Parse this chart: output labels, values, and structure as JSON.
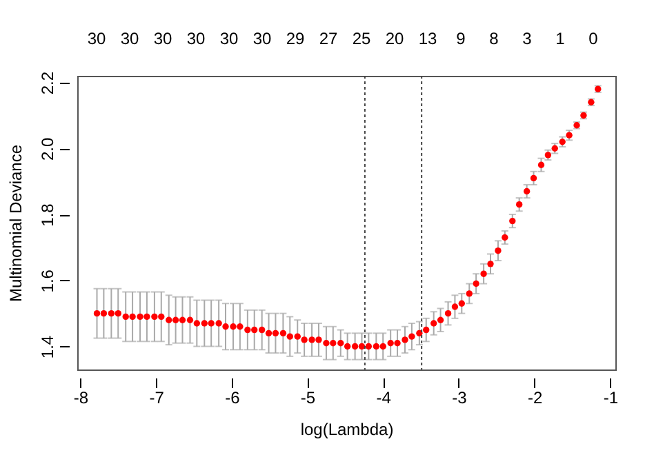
{
  "chart_data": {
    "type": "scatter",
    "xlabel": "log(Lambda)",
    "ylabel": "Multinomial Deviance",
    "x": [
      -7.78,
      -7.69,
      -7.59,
      -7.5,
      -7.4,
      -7.31,
      -7.21,
      -7.12,
      -7.02,
      -6.93,
      -6.83,
      -6.74,
      -6.65,
      -6.55,
      -6.46,
      -6.36,
      -6.27,
      -6.17,
      -6.08,
      -5.98,
      -5.89,
      -5.79,
      -5.7,
      -5.6,
      -5.51,
      -5.42,
      -5.32,
      -5.23,
      -5.13,
      -5.04,
      -4.94,
      -4.85,
      -4.75,
      -4.66,
      -4.56,
      -4.47,
      -4.37,
      -4.28,
      -4.19,
      -4.09,
      -4.0,
      -3.9,
      -3.81,
      -3.71,
      -3.62,
      -3.52,
      -3.43,
      -3.33,
      -3.24,
      -3.14,
      -3.05,
      -2.96,
      -2.86,
      -2.77,
      -2.67,
      -2.58,
      -2.48,
      -2.39,
      -2.29,
      -2.2,
      -2.1,
      -2.01,
      -1.91,
      -1.82,
      -1.73,
      -1.63,
      -1.54,
      -1.44,
      -1.35,
      -1.25,
      -1.16
    ],
    "series": [
      {
        "color": "#ff0000",
        "values": [
          1.5,
          1.5,
          1.5,
          1.5,
          1.49,
          1.49,
          1.49,
          1.49,
          1.49,
          1.49,
          1.48,
          1.48,
          1.48,
          1.48,
          1.47,
          1.47,
          1.47,
          1.47,
          1.46,
          1.46,
          1.46,
          1.45,
          1.45,
          1.45,
          1.44,
          1.44,
          1.44,
          1.43,
          1.43,
          1.42,
          1.42,
          1.42,
          1.41,
          1.41,
          1.41,
          1.4,
          1.4,
          1.4,
          1.4,
          1.4,
          1.4,
          1.41,
          1.41,
          1.42,
          1.43,
          1.44,
          1.45,
          1.47,
          1.48,
          1.5,
          1.52,
          1.53,
          1.56,
          1.59,
          1.62,
          1.65,
          1.69,
          1.73,
          1.78,
          1.83,
          1.87,
          1.91,
          1.95,
          1.98,
          2.0,
          2.02,
          2.04,
          2.07,
          2.1,
          2.14,
          2.18
        ],
        "errors": [
          0.075,
          0.075,
          0.075,
          0.075,
          0.075,
          0.075,
          0.075,
          0.075,
          0.075,
          0.075,
          0.075,
          0.07,
          0.07,
          0.07,
          0.07,
          0.07,
          0.07,
          0.07,
          0.07,
          0.07,
          0.07,
          0.06,
          0.06,
          0.06,
          0.06,
          0.06,
          0.06,
          0.06,
          0.05,
          0.05,
          0.05,
          0.05,
          0.05,
          0.05,
          0.04,
          0.04,
          0.04,
          0.04,
          0.04,
          0.04,
          0.04,
          0.04,
          0.04,
          0.04,
          0.04,
          0.035,
          0.035,
          0.035,
          0.035,
          0.035,
          0.035,
          0.03,
          0.03,
          0.03,
          0.03,
          0.03,
          0.03,
          0.02,
          0.02,
          0.02,
          0.02,
          0.02,
          0.02,
          0.015,
          0.015,
          0.015,
          0.015,
          0.01,
          0.01,
          0.01,
          0.01
        ]
      }
    ],
    "marker": "circle",
    "xlim": [
      -8.04,
      -0.93
    ],
    "ylim": [
      1.33,
      2.22
    ],
    "xticks": [
      -8,
      -7,
      -6,
      -5,
      -4,
      -3,
      -2,
      -1
    ],
    "yticks": [
      1.4,
      1.6,
      1.8,
      {
        "value": 2.0,
        "label": "2.0"
      },
      2.2
    ],
    "annotations": [
      "30",
      "30",
      "30",
      "30",
      "30",
      "30",
      "29",
      "27",
      "25",
      "20",
      "13",
      "9",
      "8",
      "3",
      "1",
      "0"
    ],
    "ref_lines": [
      {
        "axis": "x",
        "value": -4.24,
        "color": "#444444",
        "line_style": "dotted"
      },
      {
        "axis": "x",
        "value": -3.49,
        "color": "#444444",
        "line_style": "dotted"
      }
    ],
    "grid": false
  }
}
